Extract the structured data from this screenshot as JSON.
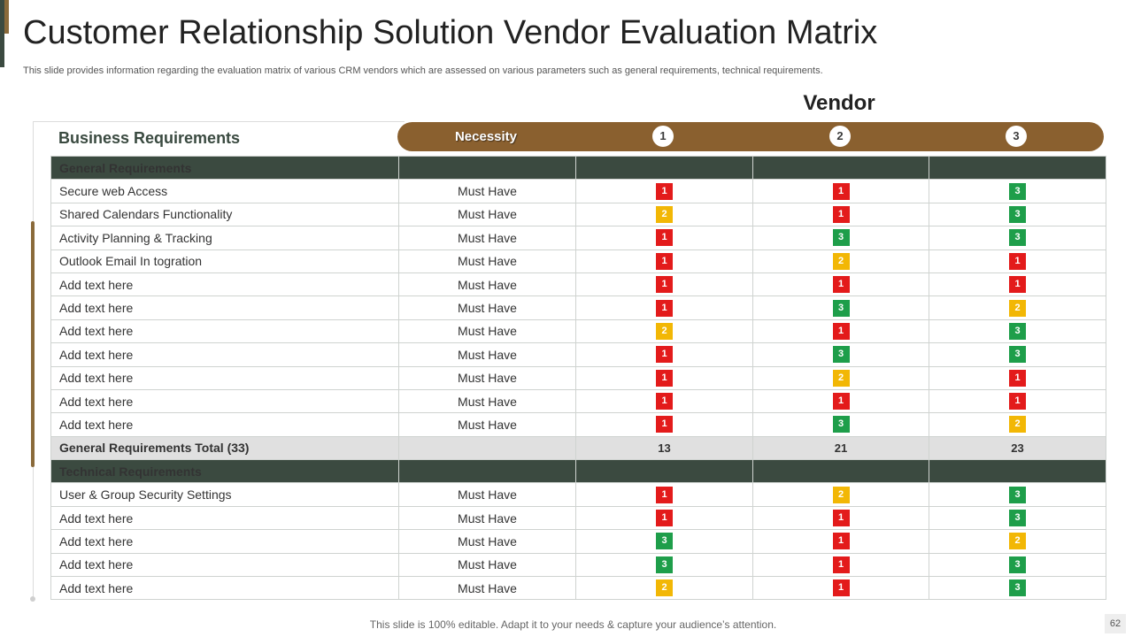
{
  "slide": {
    "title": "Customer Relationship Solution Vendor Evaluation Matrix",
    "subtitle": "This slide provides information regarding the evaluation matrix of various CRM vendors which are assessed on various parameters such as general requirements, technical requirements.",
    "vendor_heading": "Vendor",
    "section_heading": "Business Requirements",
    "footer": "This slide is 100% editable. Adapt it to your needs & capture your audience’s attention.",
    "page_number": "62"
  },
  "header": {
    "necessity_label": "Necessity",
    "vendors": [
      "1",
      "2",
      "3"
    ]
  },
  "colors": {
    "dark_green": "#3b4a40",
    "brown": "#8a602f",
    "score_1": "#e31b1b",
    "score_2": "#f2b705",
    "score_3": "#1e9e4a"
  },
  "groups": [
    {
      "title": "General Requirements",
      "rows": [
        {
          "requirement": "Secure web Access",
          "necessity": "Must Have",
          "scores": [
            "1",
            "1",
            "3"
          ]
        },
        {
          "requirement": "Shared Calendars Functionality",
          "necessity": "Must Have",
          "scores": [
            "2",
            "1",
            "3"
          ]
        },
        {
          "requirement": "Activity Planning & Tracking",
          "necessity": "Must Have",
          "scores": [
            "1",
            "3",
            "3"
          ]
        },
        {
          "requirement": "Outlook Email In togration",
          "necessity": "Must Have",
          "scores": [
            "1",
            "2",
            "1"
          ]
        },
        {
          "requirement": "Add text here",
          "necessity": "Must Have",
          "scores": [
            "1",
            "1",
            "1"
          ]
        },
        {
          "requirement": "Add text here",
          "necessity": "Must Have",
          "scores": [
            "1",
            "3",
            "2"
          ]
        },
        {
          "requirement": "Add text here",
          "necessity": "Must Have",
          "scores": [
            "2",
            "1",
            "3"
          ]
        },
        {
          "requirement": "Add text here",
          "necessity": "Must Have",
          "scores": [
            "1",
            "3",
            "3"
          ]
        },
        {
          "requirement": "Add text here",
          "necessity": "Must Have",
          "scores": [
            "1",
            "2",
            "1"
          ]
        },
        {
          "requirement": "Add text here",
          "necessity": "Must Have",
          "scores": [
            "1",
            "1",
            "1"
          ]
        },
        {
          "requirement": "Add text here",
          "necessity": "Must Have",
          "scores": [
            "1",
            "3",
            "2"
          ]
        }
      ],
      "total": {
        "label": "General Requirements Total (33)",
        "values": [
          "13",
          "21",
          "23"
        ]
      }
    },
    {
      "title": "Technical Requirements",
      "rows": [
        {
          "requirement": "User & Group Security Settings",
          "necessity": "Must Have",
          "scores": [
            "1",
            "2",
            "3"
          ]
        },
        {
          "requirement": "Add text here",
          "necessity": "Must Have",
          "scores": [
            "1",
            "1",
            "3"
          ]
        },
        {
          "requirement": "Add text here",
          "necessity": "Must Have",
          "scores": [
            "3",
            "1",
            "2"
          ]
        },
        {
          "requirement": "Add text here",
          "necessity": "Must Have",
          "scores": [
            "3",
            "1",
            "3"
          ]
        },
        {
          "requirement": "Add text here",
          "necessity": "Must Have",
          "scores": [
            "2",
            "1",
            "3"
          ]
        }
      ]
    }
  ]
}
